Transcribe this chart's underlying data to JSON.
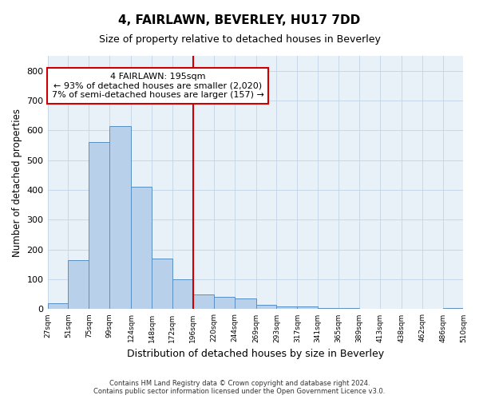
{
  "title": "4, FAIRLAWN, BEVERLEY, HU17 7DD",
  "subtitle": "Size of property relative to detached houses in Beverley",
  "xlabel": "Distribution of detached houses by size in Beverley",
  "ylabel": "Number of detached properties",
  "footnote1": "Contains HM Land Registry data © Crown copyright and database right 2024.",
  "footnote2": "Contains public sector information licensed under the Open Government Licence v3.0.",
  "bar_color": "#b8d0ea",
  "bar_edge_color": "#5a8fc2",
  "grid_color": "#c8d8e8",
  "bg_color": "#e8f0f8",
  "property_line_x": 196,
  "property_line_color": "#cc0000",
  "annotation_line1": "4 FAIRLAWN: 195sqm",
  "annotation_line2": "← 93% of detached houses are smaller (2,020)",
  "annotation_line3": "7% of semi-detached houses are larger (157) →",
  "annotation_box_color": "#cc0000",
  "bins": [
    27,
    51,
    75,
    99,
    124,
    148,
    172,
    196,
    220,
    244,
    269,
    293,
    317,
    341,
    365,
    389,
    413,
    438,
    462,
    486,
    510
  ],
  "counts": [
    20,
    165,
    560,
    615,
    410,
    170,
    100,
    50,
    40,
    35,
    15,
    10,
    10,
    5,
    5,
    0,
    0,
    0,
    0,
    5
  ],
  "ylim": [
    0,
    850
  ],
  "yticks": [
    0,
    100,
    200,
    300,
    400,
    500,
    600,
    700,
    800
  ]
}
